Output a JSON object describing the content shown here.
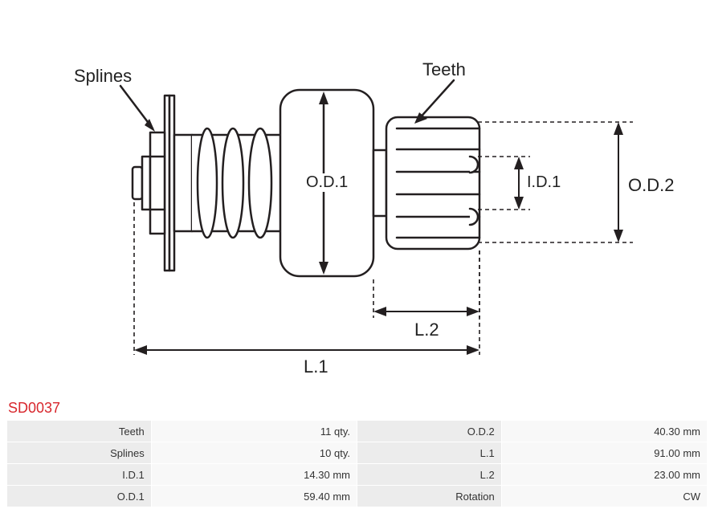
{
  "part_number": "SD0037",
  "diagram": {
    "labels": {
      "splines": "Splines",
      "teeth": "Teeth",
      "od1": "O.D.1",
      "od2": "O.D.2",
      "id1": "I.D.1",
      "l1": "L.1",
      "l2": "L.2"
    },
    "colors": {
      "stroke": "#231f20",
      "dash": "#231f20",
      "background": "#ffffff"
    },
    "stroke_width": 2.5,
    "dash_pattern": "5,4"
  },
  "specs": {
    "rows": [
      {
        "label1": "Teeth",
        "value1": "11 qty.",
        "label2": "O.D.2",
        "value2": "40.30 mm"
      },
      {
        "label1": "Splines",
        "value1": "10 qty.",
        "label2": "L.1",
        "value2": "91.00 mm"
      },
      {
        "label1": "I.D.1",
        "value1": "14.30 mm",
        "label2": "L.2",
        "value2": "23.00 mm"
      },
      {
        "label1": "O.D.1",
        "value1": "59.40 mm",
        "label2": "Rotation",
        "value2": "CW"
      }
    ]
  }
}
